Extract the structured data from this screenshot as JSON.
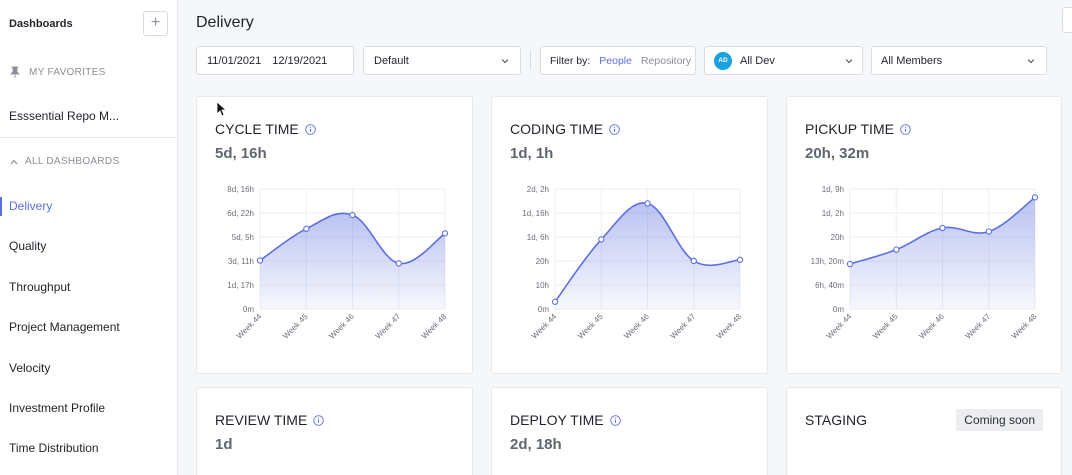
{
  "sidebar": {
    "header": "Dashboards",
    "add_label": "+",
    "favorites_label": "MY FAVORITES",
    "favorite_item": "Esssential Repo M...",
    "all_label": "ALL DASHBOARDS",
    "items": [
      {
        "label": "Delivery",
        "active": true
      },
      {
        "label": "Quality"
      },
      {
        "label": "Throughput"
      },
      {
        "label": "Project Management"
      },
      {
        "label": "Velocity"
      },
      {
        "label": "Investment Profile"
      },
      {
        "label": "Time Distribution"
      }
    ],
    "accent": "#5b6fe0"
  },
  "main": {
    "title": "Delivery",
    "filters": {
      "date_start": "11/01/2021",
      "date_end": "12/19/2021",
      "view": "Default",
      "filter_by_label": "Filter by:",
      "filter_people": "People",
      "filter_repository": "Repository",
      "dev_badge": "AD",
      "dev": "All Dev",
      "members": "All Members"
    }
  },
  "cards": [
    {
      "title": "CYCLE TIME",
      "value": "5d, 16h"
    },
    {
      "title": "CODING TIME",
      "value": "1d, 1h"
    },
    {
      "title": "PICKUP TIME",
      "value": "20h, 32m"
    },
    {
      "title": "REVIEW TIME",
      "value": "1d"
    },
    {
      "title": "DEPLOY TIME",
      "value": "2d, 18h"
    },
    {
      "title": "STAGING",
      "badge": "Coming soon"
    }
  ],
  "chart_data": [
    {
      "type": "area",
      "title": "CYCLE TIME",
      "categories": [
        "Week 44",
        "Week 45",
        "Week 46",
        "Week 47",
        "Week 48"
      ],
      "y_tick_labels": [
        "0m",
        "1d, 17h",
        "3d, 11h",
        "5d, 5h",
        "6d, 22h",
        "8d, 16h"
      ],
      "ylim_hours": [
        0,
        208
      ],
      "series": [
        {
          "values_hours": [
            84,
            139,
            163,
            79,
            131
          ]
        }
      ],
      "color": "#5b6fe0"
    },
    {
      "type": "area",
      "title": "CODING TIME",
      "categories": [
        "Week 44",
        "Week 45",
        "Week 46",
        "Week 47",
        "Week 48"
      ],
      "y_tick_labels": [
        "0m",
        "10h",
        "20h",
        "1d, 6h",
        "1d, 16h",
        "2d, 2h"
      ],
      "ylim_hours": [
        0,
        50
      ],
      "series": [
        {
          "values_hours": [
            3,
            29,
            44,
            20,
            20.5
          ]
        }
      ],
      "color": "#5b6fe0"
    },
    {
      "type": "area",
      "title": "PICKUP TIME",
      "categories": [
        "Week 44",
        "Week 45",
        "Week 46",
        "Week 47",
        "Week 48"
      ],
      "y_tick_labels": [
        "0m",
        "6h, 40m",
        "13h, 20m",
        "20h",
        "1d, 2h",
        "1d, 9h"
      ],
      "ylim_hours": [
        0,
        33.33
      ],
      "series": [
        {
          "values_hours": [
            12.5,
            16.5,
            22.5,
            21.5,
            31
          ]
        }
      ],
      "color": "#5b6fe0"
    }
  ]
}
